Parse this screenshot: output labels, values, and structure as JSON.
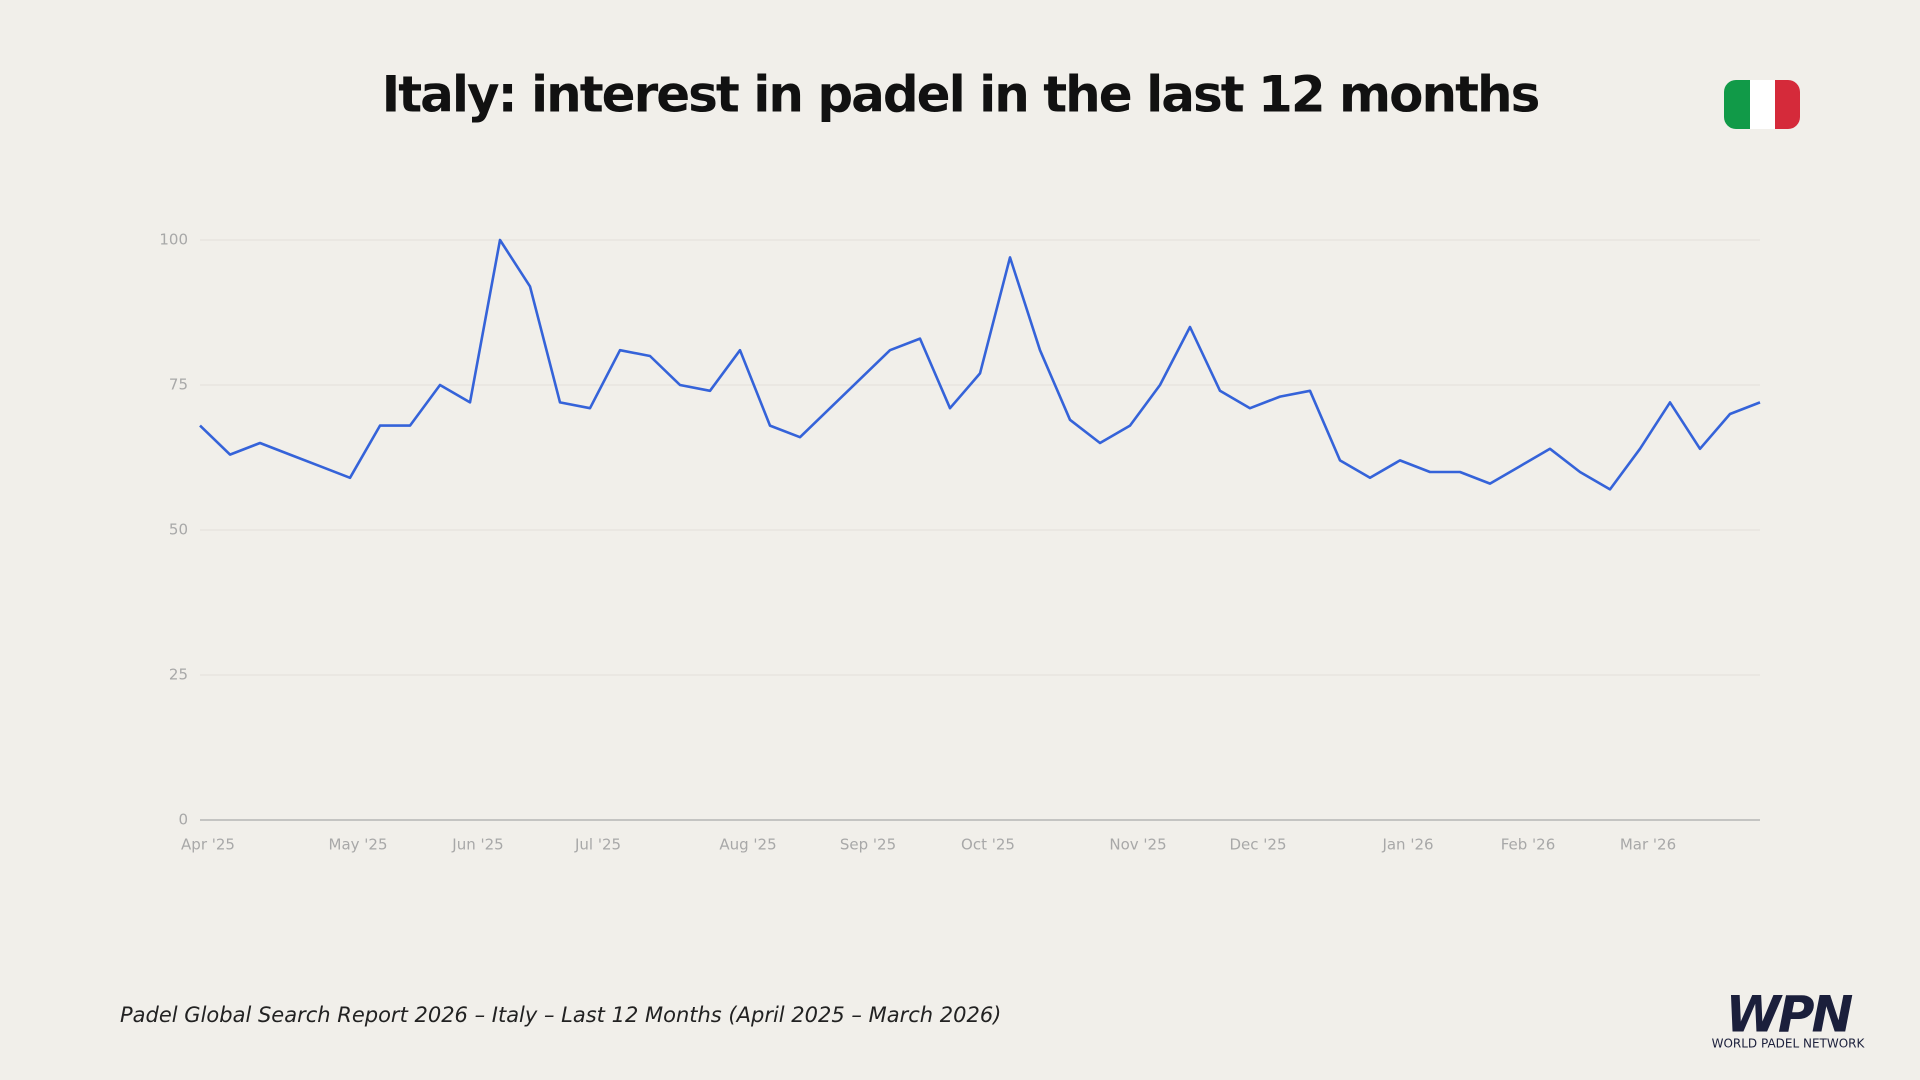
{
  "chart_data": {
    "type": "line",
    "title": "Italy: interest in padel in the last 12 months",
    "footnote": "Padel Global Search Report 2026 – Italy – Last 12 Months (April 2025 – March 2026)",
    "brand": "WPN",
    "brand_subtitle": "WORLD PADEL NETWORK",
    "categories": [
      "Apr '25",
      null,
      null,
      null,
      null,
      "May '25",
      null,
      null,
      null,
      "Jun '25",
      null,
      null,
      null,
      "Jul '25",
      null,
      null,
      null,
      null,
      "Aug '25",
      null,
      null,
      null,
      "Sep '25",
      null,
      null,
      null,
      "Oct '25",
      null,
      null,
      null,
      null,
      "Nov '25",
      null,
      null,
      null,
      "Dec '25",
      null,
      null,
      null,
      null,
      "Jan '26",
      null,
      null,
      null,
      "Feb '26",
      null,
      null,
      null,
      "Mar '26",
      null,
      null,
      null,
      null
    ],
    "series": [
      {
        "name": "Italy",
        "color": "#3563d9",
        "values": [
          68,
          63,
          65,
          63,
          61,
          59,
          68,
          68,
          75,
          72,
          100,
          92,
          72,
          71,
          81,
          80,
          75,
          74,
          81,
          68,
          66,
          71,
          76,
          81,
          83,
          71,
          77,
          97,
          81,
          69,
          65,
          68,
          75,
          85,
          74,
          71,
          73,
          74,
          62,
          59,
          62,
          60,
          60,
          58,
          61,
          64,
          60,
          57,
          64,
          72,
          64,
          70,
          72
        ]
      }
    ],
    "ylim": [
      0,
      100
    ],
    "yticks": [
      0,
      25,
      50,
      75,
      100
    ],
    "grid": true
  }
}
